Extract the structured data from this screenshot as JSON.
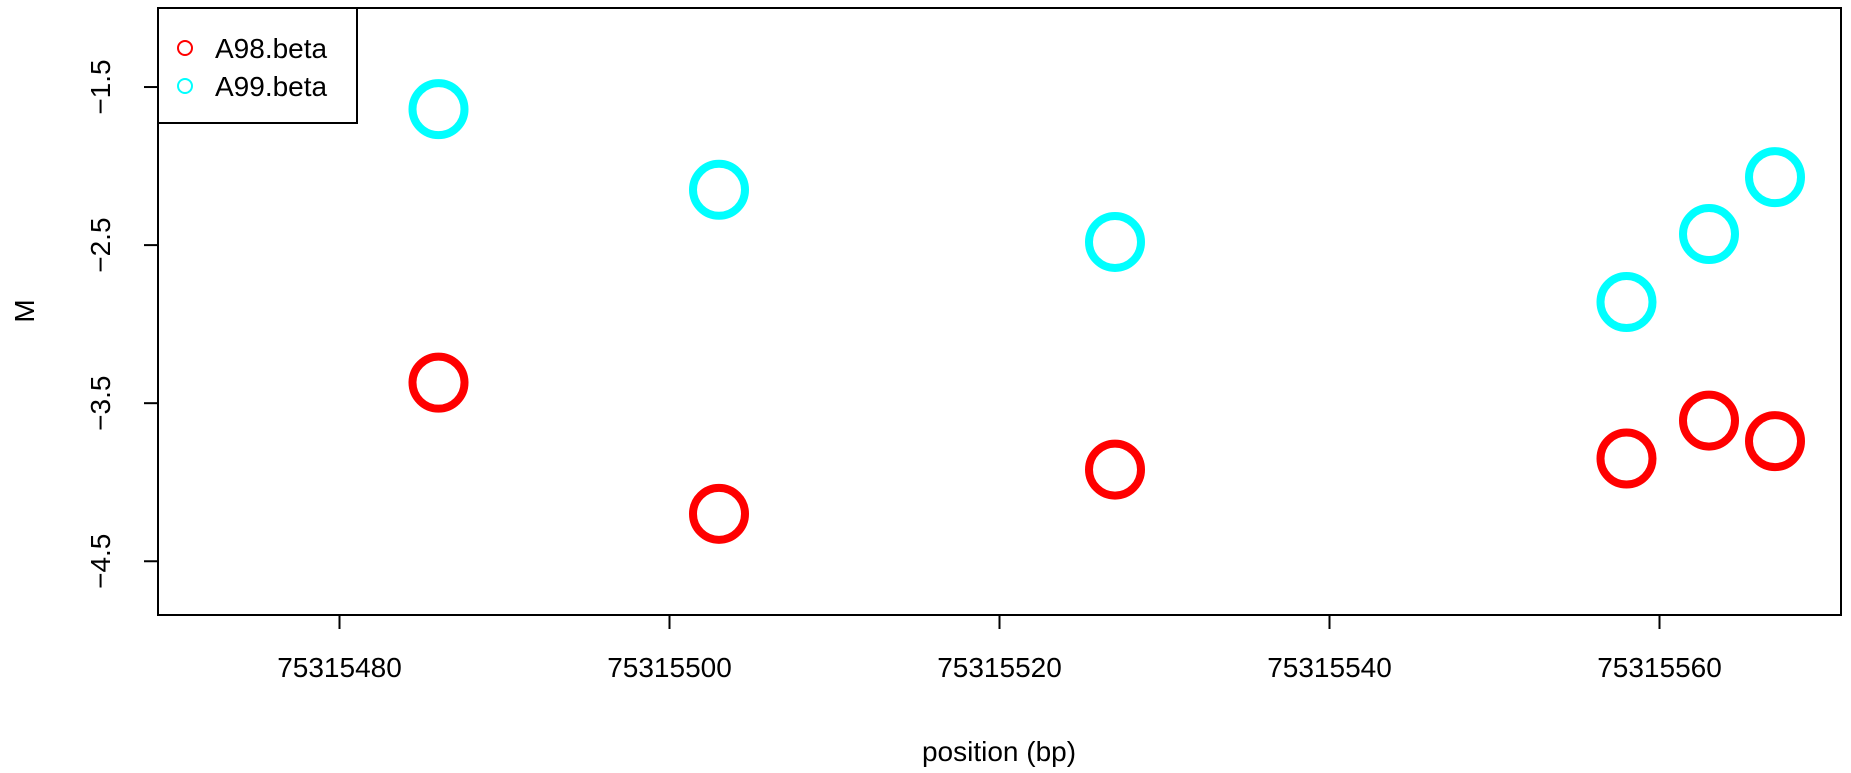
{
  "chart_data": {
    "type": "scatter",
    "xlabel": "position (bp)",
    "ylabel": "M",
    "xlim": [
      75315469,
      75315571
    ],
    "ylim": [
      -4.84,
      -1.0
    ],
    "xticks": [
      75315480,
      75315500,
      75315520,
      75315540,
      75315560
    ],
    "xtick_labels": [
      "75315480",
      "75315500",
      "75315520",
      "75315540",
      "75315560"
    ],
    "yticks": [
      -1.5,
      -2.5,
      -3.5,
      -4.5
    ],
    "ytick_labels": [
      "−1.5",
      "−2.5",
      "−3.5",
      "−4.5"
    ],
    "grid": false,
    "legend_position": "top-left",
    "series": [
      {
        "name": "A98.beta",
        "color": "#ff0000",
        "marker": "open-circle",
        "x": [
          75315486,
          75315503,
          75315527,
          75315558,
          75315563,
          75315567
        ],
        "y": [
          -3.37,
          -4.2,
          -3.92,
          -3.85,
          -3.61,
          -3.74
        ]
      },
      {
        "name": "A99.beta",
        "color": "#00ffff",
        "marker": "open-circle",
        "x": [
          75315486,
          75315503,
          75315527,
          75315558,
          75315563,
          75315567
        ],
        "y": [
          -1.64,
          -2.15,
          -2.48,
          -2.86,
          -2.43,
          -2.07
        ]
      }
    ]
  }
}
